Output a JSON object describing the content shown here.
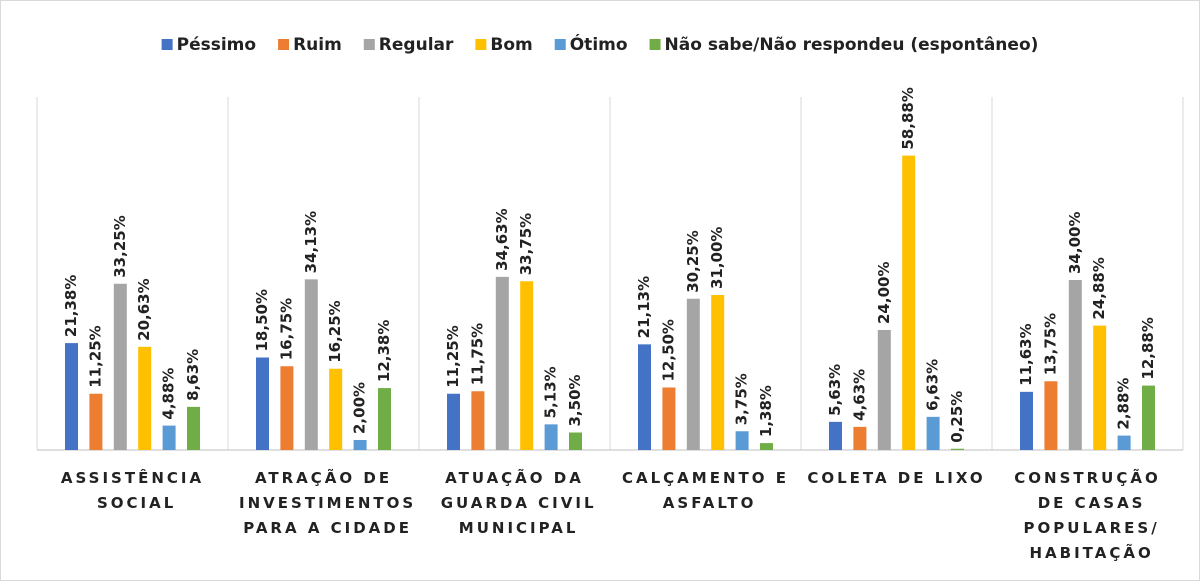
{
  "chart_data": {
    "type": "bar",
    "categories": [
      "ASSISTÊNCIA SOCIAL",
      "ATRAÇÃO DE INVESTIMENTOS PARA A CIDADE",
      "ATUAÇÃO DA GUARDA CIVIL MUNICIPAL",
      "CALÇAMENTO E ASFALTO",
      "COLETA DE LIXO",
      "CONSTRUÇÃO DE CASAS POPULARES/ HABITAÇÃO"
    ],
    "series": [
      {
        "name": "Péssimo",
        "color": "#4472c4",
        "values": [
          21.38,
          18.5,
          11.25,
          21.13,
          5.63,
          11.63
        ],
        "value_labels": [
          "21,38%",
          "18,50%",
          "11,25%",
          "21,13%",
          "5,63%",
          "11,63%"
        ]
      },
      {
        "name": "Ruim",
        "color": "#ed7d31",
        "values": [
          11.25,
          16.75,
          11.75,
          12.5,
          4.63,
          13.75
        ],
        "value_labels": [
          "11,25%",
          "16,75%",
          "11,75%",
          "12,50%",
          "4,63%",
          "13,75%"
        ]
      },
      {
        "name": "Regular",
        "color": "#a5a5a5",
        "values": [
          33.25,
          34.13,
          34.63,
          30.25,
          24.0,
          34.0
        ],
        "value_labels": [
          "33,25%",
          "34,13%",
          "34,63%",
          "30,25%",
          "24,00%",
          "34,00%"
        ]
      },
      {
        "name": "Bom",
        "color": "#ffc000",
        "values": [
          20.63,
          16.25,
          33.75,
          31.0,
          58.88,
          24.88
        ],
        "value_labels": [
          "20,63%",
          "16,25%",
          "33,75%",
          "31,00%",
          "58,88%",
          "24,88%"
        ]
      },
      {
        "name": "Ótimo",
        "color": "#5b9bd5",
        "values": [
          4.88,
          2.0,
          5.13,
          3.75,
          6.63,
          2.88
        ],
        "value_labels": [
          "4,88%",
          "2,00%",
          "5,13%",
          "3,75%",
          "6,63%",
          "2,88%"
        ]
      },
      {
        "name": "Não sabe/Não respondeu (espontâneo)",
        "color": "#70ad47",
        "values": [
          8.63,
          12.38,
          3.5,
          1.38,
          0.25,
          12.88
        ],
        "value_labels": [
          "8,63%",
          "12,38%",
          "3,50%",
          "1,38%",
          "0,25%",
          "12,88%"
        ]
      }
    ],
    "legend": "top"
  }
}
